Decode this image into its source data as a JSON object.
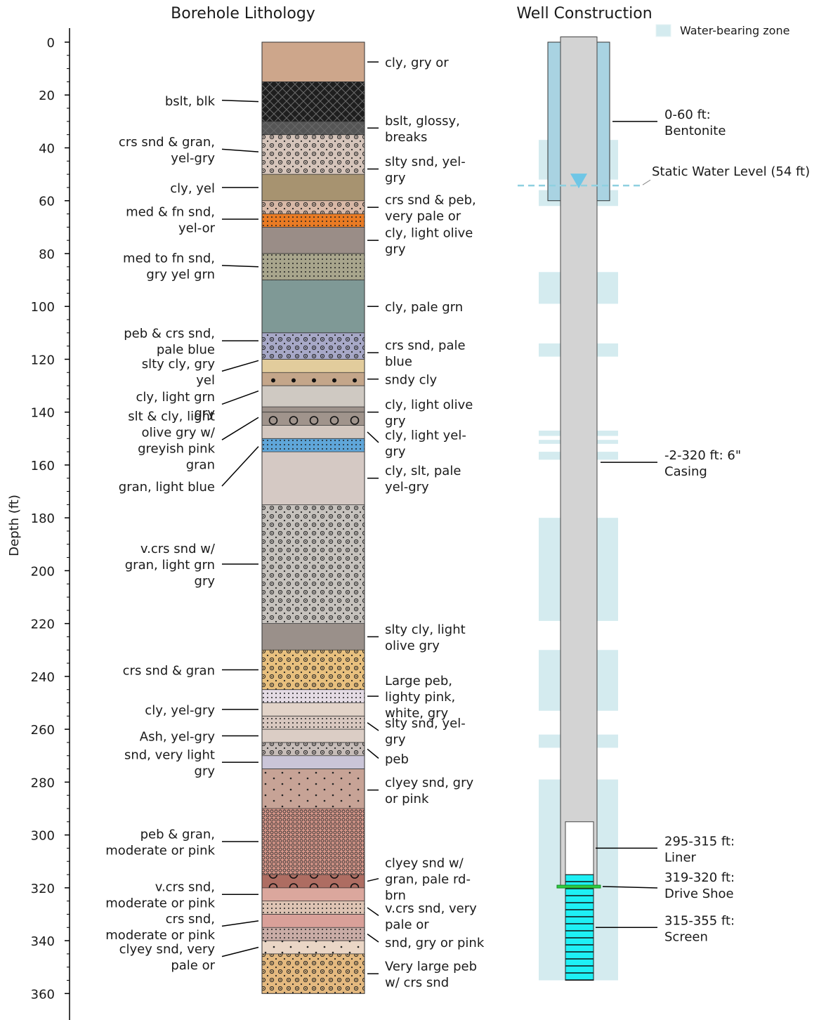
{
  "chart_data": {
    "type": "diagram",
    "titles": {
      "lithology": "Borehole Lithology",
      "construction": "Well Construction"
    },
    "ylabel": "Depth (ft)",
    "ylim": [
      0,
      363
    ],
    "yticks": [
      0,
      20,
      40,
      60,
      80,
      100,
      120,
      140,
      160,
      180,
      200,
      220,
      240,
      260,
      280,
      300,
      320,
      340,
      360
    ],
    "legend": {
      "label": "Water-bearing zone",
      "color": "#d4ebef",
      "position": "top-right"
    },
    "layers": [
      {
        "top": 0,
        "bottom": 15,
        "color": "#cda68b",
        "pattern": "none"
      },
      {
        "top": 15,
        "bottom": 30,
        "color": "#1e1e1e",
        "pattern": "cross"
      },
      {
        "top": 30,
        "bottom": 35,
        "color": "#555555",
        "pattern": "cross"
      },
      {
        "top": 35,
        "bottom": 50,
        "color": "#d5c4ba",
        "pattern": "gravel"
      },
      {
        "top": 50,
        "bottom": 60,
        "color": "#a79370",
        "pattern": "none"
      },
      {
        "top": 60,
        "bottom": 65,
        "color": "#d8b8a6",
        "pattern": "gravel"
      },
      {
        "top": 65,
        "bottom": 70,
        "color": "#e97b24",
        "pattern": "dots"
      },
      {
        "top": 70,
        "bottom": 80,
        "color": "#9a8d87",
        "pattern": "none"
      },
      {
        "top": 80,
        "bottom": 90,
        "color": "#a8a58c",
        "pattern": "dots"
      },
      {
        "top": 90,
        "bottom": 110,
        "color": "#7f9996",
        "pattern": "none"
      },
      {
        "top": 110,
        "bottom": 120,
        "color": "#a7a8c7",
        "pattern": "gravel"
      },
      {
        "top": 120,
        "bottom": 125,
        "color": "#e2cc9c",
        "pattern": "none"
      },
      {
        "top": 125,
        "bottom": 130,
        "color": "#c4a68a",
        "pattern": "bigdots"
      },
      {
        "top": 130,
        "bottom": 138,
        "color": "#cfc9c2",
        "pattern": "none"
      },
      {
        "top": 138,
        "bottom": 140,
        "color": "#9d928b",
        "pattern": "none"
      },
      {
        "top": 140,
        "bottom": 145,
        "color": "#a0948c",
        "pattern": "rings"
      },
      {
        "top": 145,
        "bottom": 150,
        "color": "#d3c7bf",
        "pattern": "none"
      },
      {
        "top": 150,
        "bottom": 155,
        "color": "#5fa6d9",
        "pattern": "dots"
      },
      {
        "top": 155,
        "bottom": 175,
        "color": "#d5c9c4",
        "pattern": "none"
      },
      {
        "top": 175,
        "bottom": 220,
        "color": "#c6c2bd",
        "pattern": "gravel"
      },
      {
        "top": 220,
        "bottom": 230,
        "color": "#9a908a",
        "pattern": "none"
      },
      {
        "top": 230,
        "bottom": 245,
        "color": "#e8c07e",
        "pattern": "gravel"
      },
      {
        "top": 245,
        "bottom": 250,
        "color": "#e4dbe4",
        "pattern": "dots"
      },
      {
        "top": 250,
        "bottom": 255,
        "color": "#e2d3c8",
        "pattern": "none"
      },
      {
        "top": 255,
        "bottom": 260,
        "color": "#d8c7bf",
        "pattern": "dots"
      },
      {
        "top": 260,
        "bottom": 265,
        "color": "#dbcdc5",
        "pattern": "none"
      },
      {
        "top": 265,
        "bottom": 270,
        "color": "#c6bcb8",
        "pattern": "gravel"
      },
      {
        "top": 270,
        "bottom": 275,
        "color": "#cac5d8",
        "pattern": "none"
      },
      {
        "top": 275,
        "bottom": 290,
        "color": "#c7a396",
        "pattern": "sparsedots"
      },
      {
        "top": 290,
        "bottom": 315,
        "color": "#d59588",
        "pattern": "densedots"
      },
      {
        "top": 315,
        "bottom": 320,
        "color": "#ae6d62",
        "pattern": "rings"
      },
      {
        "top": 320,
        "bottom": 325,
        "color": "#dba79d",
        "pattern": "none"
      },
      {
        "top": 325,
        "bottom": 330,
        "color": "#ddc3b3",
        "pattern": "dots"
      },
      {
        "top": 330,
        "bottom": 335,
        "color": "#d9a099",
        "pattern": "none"
      },
      {
        "top": 335,
        "bottom": 340,
        "color": "#c9aca6",
        "pattern": "dots"
      },
      {
        "top": 340,
        "bottom": 345,
        "color": "#ead6c6",
        "pattern": "sparsedots"
      },
      {
        "top": 345,
        "bottom": 360,
        "color": "#e4b97f",
        "pattern": "gravel"
      }
    ],
    "left_labels": [
      {
        "lines": [
          "bslt, blk"
        ],
        "depth": 22.5,
        "text_depth": 22.0
      },
      {
        "lines": [
          "crs snd & gran,",
          "yel-gry"
        ],
        "depth": 41.5,
        "text_depth": 40.5
      },
      {
        "lines": [
          "cly, yel"
        ],
        "depth": 55,
        "text_depth": 55
      },
      {
        "lines": [
          "med & fn snd,",
          "yel-or"
        ],
        "depth": 67,
        "text_depth": 67
      },
      {
        "lines": [
          "med to fn snd,",
          "gry yel grn"
        ],
        "depth": 85,
        "text_depth": 84.5
      },
      {
        "lines": [
          "peb & crs snd,",
          "pale blue"
        ],
        "depth": 113,
        "text_depth": 113
      },
      {
        "lines": [
          "slty cly, gry",
          "yel"
        ],
        "depth": 122.5,
        "text_depth": 124.5,
        "target_depth": 120.5
      },
      {
        "lines": [
          "cly, light grn",
          "gry"
        ],
        "depth": 134,
        "text_depth": 137,
        "target_depth": 132
      },
      {
        "lines": [
          "slt & cly, light",
          "olive gry w/",
          "greyish pink",
          "gran"
        ],
        "depth": 147.5,
        "text_depth": 150.5,
        "target_depth": 142
      },
      {
        "lines": [
          "gran, light blue"
        ],
        "depth": 160,
        "text_depth": 168,
        "target_depth": 153
      }
    ],
    "left_labels_b": [
      {
        "lines": [
          "v.crs snd w/",
          "gran, light grn",
          "gry"
        ],
        "depth": 197.5,
        "text_depth": 197.5
      },
      {
        "lines": [
          "crs snd & gran"
        ],
        "depth": 237.5,
        "text_depth": 237.5
      },
      {
        "lines": [
          "cly, yel-gry"
        ],
        "depth": 252.5,
        "text_depth": 252.5
      },
      {
        "lines": [
          "Ash, yel-gry"
        ],
        "depth": 262.5,
        "text_depth": 262.5
      },
      {
        "lines": [
          "snd, very light",
          "gry"
        ],
        "depth": 272.5,
        "text_depth": 272.5
      },
      {
        "lines": [
          "peb & gran,",
          "moderate or pink"
        ],
        "depth": 302.5,
        "text_depth": 302.5
      },
      {
        "lines": [
          "v.crs snd,",
          "moderate or pink"
        ],
        "depth": 322.5,
        "text_depth": 322.5
      },
      {
        "lines": [
          "crs snd,",
          "moderate or pink"
        ],
        "depth": 332.5,
        "text_depth": 334.5,
        "target_depth": 332.5
      },
      {
        "lines": [
          "clyey snd, very",
          "pale or"
        ],
        "depth": 342.5,
        "text_depth": 346,
        "target_depth": 342.5
      }
    ],
    "right_labels": [
      {
        "lines": [
          "cly, gry or"
        ],
        "depth": 7.5,
        "text_depth": 7.5
      },
      {
        "lines": [
          "bslt, glossy,",
          "breaks"
        ],
        "depth": 32.5,
        "text_depth": 32.5
      },
      {
        "lines": [
          "slty snd, yel-",
          "gry"
        ],
        "depth": 48,
        "text_depth": 48
      },
      {
        "lines": [
          "crs snd & peb,",
          "very pale or"
        ],
        "depth": 62.5,
        "text_depth": 62.5
      },
      {
        "lines": [
          "cly, light olive",
          "gry"
        ],
        "depth": 75,
        "text_depth": 75
      },
      {
        "lines": [
          "cly, pale grn"
        ],
        "depth": 100,
        "text_depth": 100
      },
      {
        "lines": [
          "crs snd, pale",
          "blue"
        ],
        "depth": 117.5,
        "text_depth": 117.5
      },
      {
        "lines": [
          "sndy cly"
        ],
        "depth": 127.5,
        "text_depth": 127.5
      },
      {
        "lines": [
          "cly, light olive",
          "gry"
        ],
        "depth": 140,
        "text_depth": 140
      },
      {
        "lines": [
          "cly, light yel-",
          "gry"
        ],
        "depth": 151.5,
        "text_depth": 151.5,
        "target_depth": 147.5
      },
      {
        "lines": [
          "cly, slt, pale",
          "yel-gry"
        ],
        "depth": 165,
        "text_depth": 165
      },
      {
        "lines": [
          "slty cly, light",
          "olive gry"
        ],
        "depth": 225,
        "text_depth": 225
      },
      {
        "lines": [
          "Large peb,",
          "lighty pink,",
          "white, gry"
        ],
        "depth": 247.5,
        "text_depth": 247.5
      },
      {
        "lines": [
          "slty snd, yel-",
          "gry"
        ],
        "depth": 260.5,
        "text_depth": 260.5,
        "target_depth": 257.5
      },
      {
        "lines": [
          "peb"
        ],
        "depth": 271,
        "text_depth": 271,
        "target_depth": 267.5
      },
      {
        "lines": [
          "clyey snd, gry",
          "or pink"
        ],
        "depth": 283,
        "text_depth": 283
      },
      {
        "lines": [
          "clyey snd w/",
          "gran, pale rd-",
          "brn"
        ],
        "depth": 316.5,
        "text_depth": 316.5,
        "target_depth": 317.5
      },
      {
        "lines": [
          "v.crs snd, very",
          "pale or"
        ],
        "depth": 330.5,
        "text_depth": 330.5,
        "target_depth": 327.5
      },
      {
        "lines": [
          "snd, gry or pink"
        ],
        "depth": 340.5,
        "text_depth": 340.5,
        "target_depth": 337.5
      },
      {
        "lines": [
          "Very large peb",
          "w/ crs snd"
        ],
        "depth": 352.5,
        "text_depth": 352.5
      }
    ],
    "water_zones": [
      [
        37,
        52
      ],
      [
        56,
        62
      ],
      [
        87,
        99
      ],
      [
        114,
        119
      ],
      [
        147,
        149
      ],
      [
        150.5,
        152
      ],
      [
        155,
        158
      ],
      [
        180,
        219
      ],
      [
        230,
        253
      ],
      [
        262,
        267
      ],
      [
        279,
        355
      ]
    ],
    "static_water_level": {
      "depth": 54,
      "label": "Static Water Level (54 ft)"
    },
    "construction": {
      "bentonite": {
        "top": 0,
        "bottom": 60,
        "label": [
          "0-60 ft:",
          "Bentonite"
        ]
      },
      "casing": {
        "top": -2,
        "bottom": 320,
        "label": [
          "-2-320 ft: 6\"",
          "Casing"
        ]
      },
      "liner": {
        "top": 295,
        "bottom": 315,
        "label": [
          "295-315 ft:",
          "Liner"
        ]
      },
      "drive_shoe": {
        "top": 319,
        "bottom": 320,
        "label": [
          "319-320 ft:",
          "Drive Shoe"
        ]
      },
      "screen": {
        "top": 315,
        "bottom": 355,
        "label": [
          "315-355 ft:",
          "Screen"
        ]
      }
    }
  }
}
